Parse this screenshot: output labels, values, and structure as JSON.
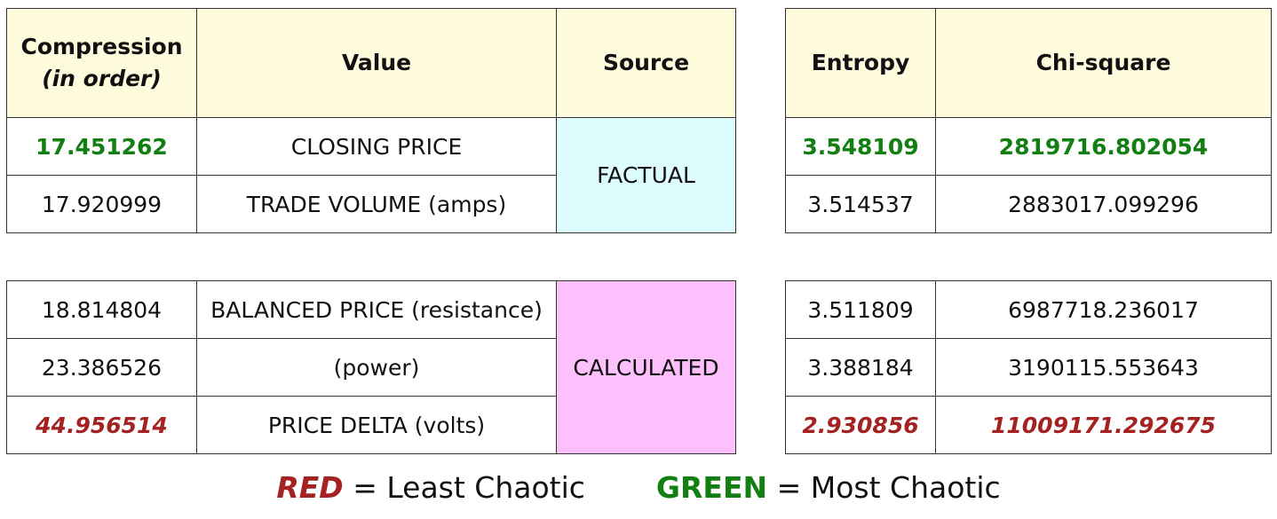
{
  "headers": {
    "compression": "Compression",
    "compression_sub": "(in order)",
    "value": "Value",
    "source": "Source",
    "entropy": "Entropy",
    "chi_square": "Chi-square"
  },
  "factual": {
    "source_label": "FACTUAL",
    "rows": [
      {
        "compression": "17.451262",
        "value": "CLOSING PRICE",
        "entropy": "3.548109",
        "chi_square": "2819716.802054"
      },
      {
        "compression": "17.920999",
        "value": "TRADE VOLUME (amps)",
        "entropy": "3.514537",
        "chi_square": "2883017.099296"
      }
    ]
  },
  "calculated": {
    "source_label": "CALCULATED",
    "rows": [
      {
        "compression": "18.814804",
        "value": "BALANCED PRICE (resistance)",
        "entropy": "3.511809",
        "chi_square": "6987718.236017"
      },
      {
        "compression": "23.386526",
        "value": "(power)",
        "entropy": "3.388184",
        "chi_square": "3190115.553643"
      },
      {
        "compression": "44.956514",
        "value": "PRICE DELTA (volts)",
        "entropy": "2.930856",
        "chi_square": "11009171.292675"
      }
    ]
  },
  "legend": {
    "red_word": "RED",
    "red_text": " = Least Chaotic",
    "green_word": "GREEN",
    "green_text": " = Most Chaotic"
  },
  "colors": {
    "green": "#117f11",
    "red": "#a52222",
    "header_bg": "#fffbdd",
    "factual_bg": "#ddfcfd",
    "calculated_bg": "#fdc0fd"
  }
}
